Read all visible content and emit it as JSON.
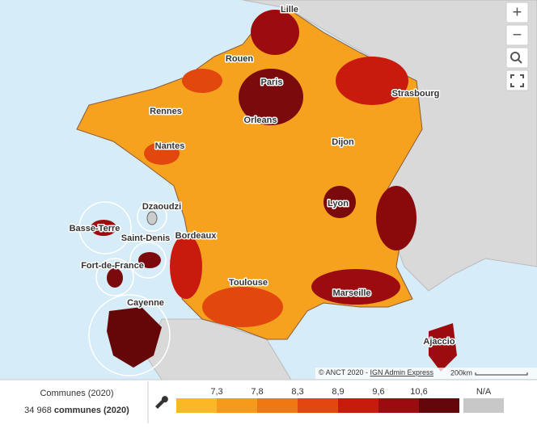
{
  "map": {
    "labels": [
      "Lille",
      "Rouen",
      "Paris",
      "Strasbourg",
      "Rennes",
      "Orleans",
      "Nantes",
      "Dijon",
      "Dzaoudzi",
      "Basse-Terre",
      "Saint-Denis",
      "Lyon",
      "Bordeaux",
      "Fort-de-France",
      "Toulouse",
      "Marseille",
      "Cayenne",
      "Ajaccio"
    ]
  },
  "controls": {
    "zoom_in": "+",
    "zoom_out": "−"
  },
  "attribution": {
    "prefix": "© ANCT 2020 - ",
    "link": "IGN Admin Express",
    "scale": "200km"
  },
  "legend": {
    "title": "Communes (2020)",
    "count": "34 968",
    "count_label": "communes (2020)",
    "thresholds": [
      "7,3",
      "7,8",
      "8,3",
      "8,9",
      "9,6",
      "10,6"
    ],
    "na": "N/A",
    "colors": [
      "#fbb826",
      "#f79a1b",
      "#ef7812",
      "#e2480d",
      "#c91a0e",
      "#9c0b0d",
      "#63070a"
    ],
    "na_color": "#c8c8c8"
  }
}
